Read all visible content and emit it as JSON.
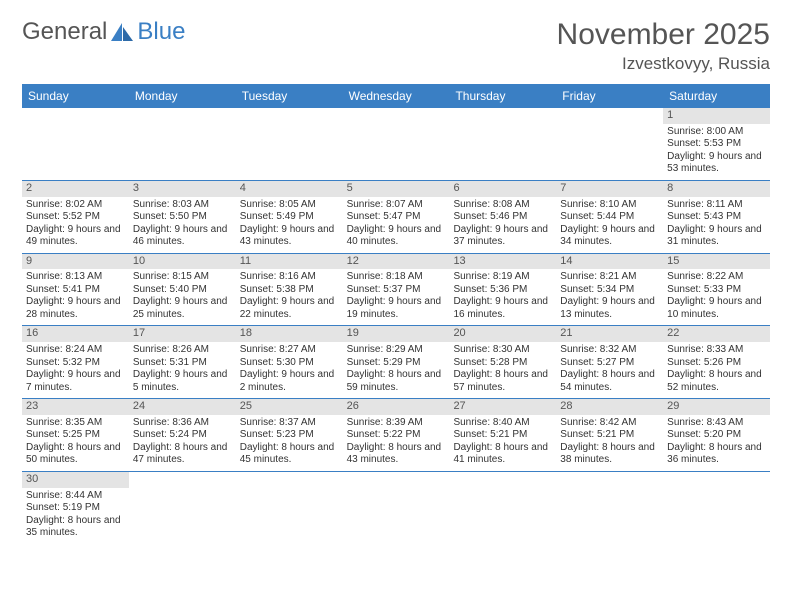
{
  "logo": {
    "text1": "General",
    "text2": "Blue"
  },
  "title": "November 2025",
  "location": "Izvestkovyy, Russia",
  "colors": {
    "header_bg": "#3a7fc4",
    "header_text": "#ffffff",
    "daynum_bg": "#e4e4e4",
    "week_border": "#3a7fc4",
    "body_text": "#333333",
    "title_text": "#555555"
  },
  "typography": {
    "title_fontsize": 30,
    "location_fontsize": 17,
    "header_fontsize": 12,
    "cell_fontsize": 10
  },
  "day_names": [
    "Sunday",
    "Monday",
    "Tuesday",
    "Wednesday",
    "Thursday",
    "Friday",
    "Saturday"
  ],
  "weeks": [
    [
      {
        "n": "",
        "sr": "",
        "ss": "",
        "dl": ""
      },
      {
        "n": "",
        "sr": "",
        "ss": "",
        "dl": ""
      },
      {
        "n": "",
        "sr": "",
        "ss": "",
        "dl": ""
      },
      {
        "n": "",
        "sr": "",
        "ss": "",
        "dl": ""
      },
      {
        "n": "",
        "sr": "",
        "ss": "",
        "dl": ""
      },
      {
        "n": "",
        "sr": "",
        "ss": "",
        "dl": ""
      },
      {
        "n": "1",
        "sr": "Sunrise: 8:00 AM",
        "ss": "Sunset: 5:53 PM",
        "dl": "Daylight: 9 hours and 53 minutes."
      }
    ],
    [
      {
        "n": "2",
        "sr": "Sunrise: 8:02 AM",
        "ss": "Sunset: 5:52 PM",
        "dl": "Daylight: 9 hours and 49 minutes."
      },
      {
        "n": "3",
        "sr": "Sunrise: 8:03 AM",
        "ss": "Sunset: 5:50 PM",
        "dl": "Daylight: 9 hours and 46 minutes."
      },
      {
        "n": "4",
        "sr": "Sunrise: 8:05 AM",
        "ss": "Sunset: 5:49 PM",
        "dl": "Daylight: 9 hours and 43 minutes."
      },
      {
        "n": "5",
        "sr": "Sunrise: 8:07 AM",
        "ss": "Sunset: 5:47 PM",
        "dl": "Daylight: 9 hours and 40 minutes."
      },
      {
        "n": "6",
        "sr": "Sunrise: 8:08 AM",
        "ss": "Sunset: 5:46 PM",
        "dl": "Daylight: 9 hours and 37 minutes."
      },
      {
        "n": "7",
        "sr": "Sunrise: 8:10 AM",
        "ss": "Sunset: 5:44 PM",
        "dl": "Daylight: 9 hours and 34 minutes."
      },
      {
        "n": "8",
        "sr": "Sunrise: 8:11 AM",
        "ss": "Sunset: 5:43 PM",
        "dl": "Daylight: 9 hours and 31 minutes."
      }
    ],
    [
      {
        "n": "9",
        "sr": "Sunrise: 8:13 AM",
        "ss": "Sunset: 5:41 PM",
        "dl": "Daylight: 9 hours and 28 minutes."
      },
      {
        "n": "10",
        "sr": "Sunrise: 8:15 AM",
        "ss": "Sunset: 5:40 PM",
        "dl": "Daylight: 9 hours and 25 minutes."
      },
      {
        "n": "11",
        "sr": "Sunrise: 8:16 AM",
        "ss": "Sunset: 5:38 PM",
        "dl": "Daylight: 9 hours and 22 minutes."
      },
      {
        "n": "12",
        "sr": "Sunrise: 8:18 AM",
        "ss": "Sunset: 5:37 PM",
        "dl": "Daylight: 9 hours and 19 minutes."
      },
      {
        "n": "13",
        "sr": "Sunrise: 8:19 AM",
        "ss": "Sunset: 5:36 PM",
        "dl": "Daylight: 9 hours and 16 minutes."
      },
      {
        "n": "14",
        "sr": "Sunrise: 8:21 AM",
        "ss": "Sunset: 5:34 PM",
        "dl": "Daylight: 9 hours and 13 minutes."
      },
      {
        "n": "15",
        "sr": "Sunrise: 8:22 AM",
        "ss": "Sunset: 5:33 PM",
        "dl": "Daylight: 9 hours and 10 minutes."
      }
    ],
    [
      {
        "n": "16",
        "sr": "Sunrise: 8:24 AM",
        "ss": "Sunset: 5:32 PM",
        "dl": "Daylight: 9 hours and 7 minutes."
      },
      {
        "n": "17",
        "sr": "Sunrise: 8:26 AM",
        "ss": "Sunset: 5:31 PM",
        "dl": "Daylight: 9 hours and 5 minutes."
      },
      {
        "n": "18",
        "sr": "Sunrise: 8:27 AM",
        "ss": "Sunset: 5:30 PM",
        "dl": "Daylight: 9 hours and 2 minutes."
      },
      {
        "n": "19",
        "sr": "Sunrise: 8:29 AM",
        "ss": "Sunset: 5:29 PM",
        "dl": "Daylight: 8 hours and 59 minutes."
      },
      {
        "n": "20",
        "sr": "Sunrise: 8:30 AM",
        "ss": "Sunset: 5:28 PM",
        "dl": "Daylight: 8 hours and 57 minutes."
      },
      {
        "n": "21",
        "sr": "Sunrise: 8:32 AM",
        "ss": "Sunset: 5:27 PM",
        "dl": "Daylight: 8 hours and 54 minutes."
      },
      {
        "n": "22",
        "sr": "Sunrise: 8:33 AM",
        "ss": "Sunset: 5:26 PM",
        "dl": "Daylight: 8 hours and 52 minutes."
      }
    ],
    [
      {
        "n": "23",
        "sr": "Sunrise: 8:35 AM",
        "ss": "Sunset: 5:25 PM",
        "dl": "Daylight: 8 hours and 50 minutes."
      },
      {
        "n": "24",
        "sr": "Sunrise: 8:36 AM",
        "ss": "Sunset: 5:24 PM",
        "dl": "Daylight: 8 hours and 47 minutes."
      },
      {
        "n": "25",
        "sr": "Sunrise: 8:37 AM",
        "ss": "Sunset: 5:23 PM",
        "dl": "Daylight: 8 hours and 45 minutes."
      },
      {
        "n": "26",
        "sr": "Sunrise: 8:39 AM",
        "ss": "Sunset: 5:22 PM",
        "dl": "Daylight: 8 hours and 43 minutes."
      },
      {
        "n": "27",
        "sr": "Sunrise: 8:40 AM",
        "ss": "Sunset: 5:21 PM",
        "dl": "Daylight: 8 hours and 41 minutes."
      },
      {
        "n": "28",
        "sr": "Sunrise: 8:42 AM",
        "ss": "Sunset: 5:21 PM",
        "dl": "Daylight: 8 hours and 38 minutes."
      },
      {
        "n": "29",
        "sr": "Sunrise: 8:43 AM",
        "ss": "Sunset: 5:20 PM",
        "dl": "Daylight: 8 hours and 36 minutes."
      }
    ],
    [
      {
        "n": "30",
        "sr": "Sunrise: 8:44 AM",
        "ss": "Sunset: 5:19 PM",
        "dl": "Daylight: 8 hours and 35 minutes."
      },
      {
        "n": "",
        "sr": "",
        "ss": "",
        "dl": ""
      },
      {
        "n": "",
        "sr": "",
        "ss": "",
        "dl": ""
      },
      {
        "n": "",
        "sr": "",
        "ss": "",
        "dl": ""
      },
      {
        "n": "",
        "sr": "",
        "ss": "",
        "dl": ""
      },
      {
        "n": "",
        "sr": "",
        "ss": "",
        "dl": ""
      },
      {
        "n": "",
        "sr": "",
        "ss": "",
        "dl": ""
      }
    ]
  ]
}
